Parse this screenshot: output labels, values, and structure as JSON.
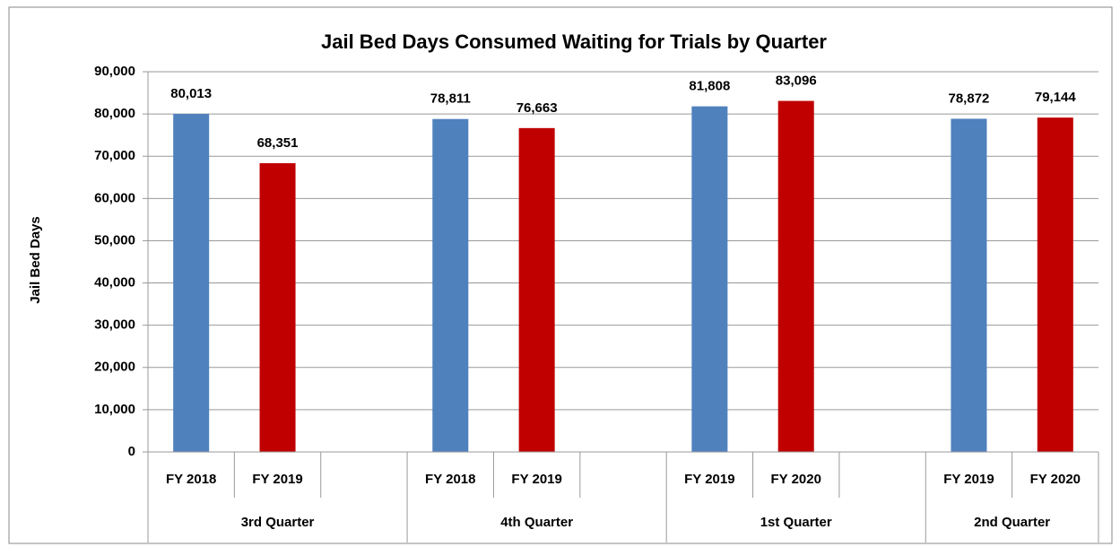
{
  "chart_data": {
    "type": "bar",
    "title": "Jail Bed Days Consumed Waiting for Trials by Quarter",
    "y_label": "Jail Bed Days",
    "colors": [
      "#4f81bd",
      "#c00000"
    ],
    "groups": [
      {
        "label": "3rd Quarter",
        "categories": [
          "FY 2018",
          "FY 2019",
          null
        ],
        "values": [
          80013,
          68351,
          null
        ],
        "value_labels": [
          "80,013",
          "68,351",
          null
        ]
      },
      {
        "label": "4th Quarter",
        "categories": [
          "FY 2018",
          "FY 2019",
          null
        ],
        "values": [
          78811,
          76663,
          null
        ],
        "value_labels": [
          "78,811",
          "76,663",
          null
        ]
      },
      {
        "label": "1st Quarter",
        "categories": [
          "FY 2019",
          "FY 2020",
          null
        ],
        "values": [
          81808,
          83096,
          null
        ],
        "value_labels": [
          "81,808",
          "83,096",
          null
        ]
      },
      {
        "label": "2nd Quarter",
        "categories": [
          "FY 2019",
          "FY 2020"
        ],
        "values": [
          78872,
          79144
        ],
        "value_labels": [
          "78,872",
          "79,144"
        ]
      }
    ],
    "ylim": [
      0,
      90000
    ],
    "yticks": [
      0,
      {
        "value": 10000,
        "label": "10,000"
      },
      {
        "value": 20000,
        "label": "20,000"
      },
      {
        "value": 30000,
        "label": "30,000"
      },
      {
        "value": 40000,
        "label": "40,000"
      },
      {
        "value": 50000,
        "label": "50,000"
      },
      {
        "value": 60000,
        "label": "60,000"
      },
      {
        "value": 70000,
        "label": "70,000"
      },
      {
        "value": 80000,
        "label": "80,000"
      },
      {
        "value": 90000,
        "label": "90,000"
      }
    ],
    "grid": true
  }
}
